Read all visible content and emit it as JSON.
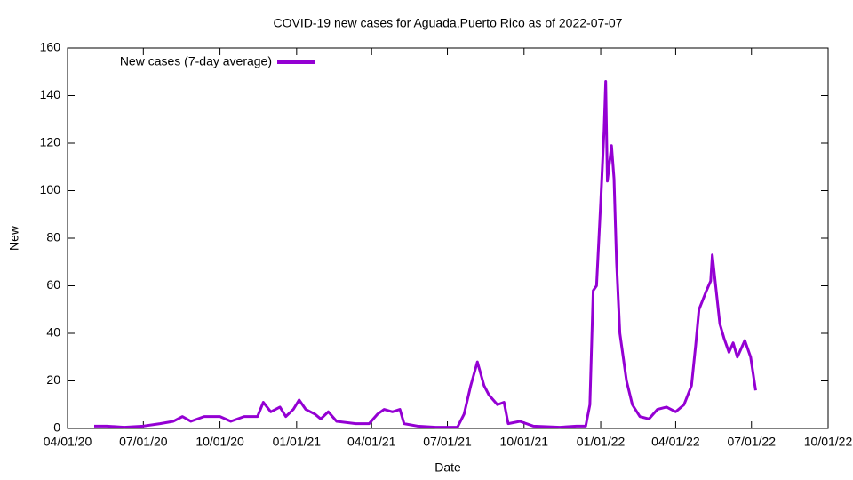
{
  "chart_data": {
    "type": "line",
    "title": "COVID-19 new cases for Aguada,Puerto Rico as of 2022-07-07",
    "x_label": "Date",
    "y_label": "New",
    "legend": "top-left",
    "xlim": [
      "2020-04-01",
      "2022-10-01"
    ],
    "xticks": [
      {
        "value": "2020-04-01",
        "label": "04/01/20"
      },
      {
        "value": "2020-07-01",
        "label": "07/01/20"
      },
      {
        "value": "2020-10-01",
        "label": "10/01/20"
      },
      {
        "value": "2021-01-01",
        "label": "01/01/21"
      },
      {
        "value": "2021-04-01",
        "label": "04/01/21"
      },
      {
        "value": "2021-07-01",
        "label": "07/01/21"
      },
      {
        "value": "2021-10-01",
        "label": "10/01/21"
      },
      {
        "value": "2022-01-01",
        "label": "01/01/22"
      },
      {
        "value": "2022-04-01",
        "label": "04/01/22"
      },
      {
        "value": "2022-07-01",
        "label": "07/01/22"
      },
      {
        "value": "2022-10-01",
        "label": "10/01/22"
      }
    ],
    "ylim": [
      0,
      160
    ],
    "yticks": [
      0,
      20,
      40,
      60,
      80,
      100,
      120,
      140,
      160
    ],
    "x": [
      "2020-05-03",
      "2020-05-18",
      "2020-06-08",
      "2020-07-01",
      "2020-07-21",
      "2020-08-06",
      "2020-08-17",
      "2020-08-27",
      "2020-09-12",
      "2020-10-01",
      "2020-10-14",
      "2020-10-30",
      "2020-11-15",
      "2020-11-22",
      "2020-12-01",
      "2020-12-12",
      "2020-12-19",
      "2020-12-28",
      "2021-01-04",
      "2021-01-12",
      "2021-01-23",
      "2021-01-30",
      "2021-02-08",
      "2021-02-18",
      "2021-03-13",
      "2021-03-29",
      "2021-04-08",
      "2021-04-16",
      "2021-04-26",
      "2021-05-05",
      "2021-05-10",
      "2021-05-26",
      "2021-06-17",
      "2021-07-13",
      "2021-07-21",
      "2021-07-29",
      "2021-08-06",
      "2021-08-14",
      "2021-08-20",
      "2021-08-30",
      "2021-09-07",
      "2021-09-12",
      "2021-09-26",
      "2021-10-12",
      "2021-11-13",
      "2021-12-03",
      "2021-12-14",
      "2021-12-19",
      "2021-12-23",
      "2021-12-27",
      "2022-01-01",
      "2022-01-05",
      "2022-01-07",
      "2022-01-09",
      "2022-01-14",
      "2022-01-17",
      "2022-01-20",
      "2022-01-24",
      "2022-02-01",
      "2022-02-08",
      "2022-02-17",
      "2022-02-28",
      "2022-03-10",
      "2022-03-21",
      "2022-04-01",
      "2022-04-11",
      "2022-04-20",
      "2022-04-25",
      "2022-04-29",
      "2022-05-08",
      "2022-05-13",
      "2022-05-15",
      "2022-05-19",
      "2022-05-24",
      "2022-05-29",
      "2022-06-04",
      "2022-06-09",
      "2022-06-14",
      "2022-06-23",
      "2022-06-30",
      "2022-07-06"
    ],
    "series": [
      {
        "name": "New cases (7-day average)",
        "color": "#9400d3",
        "values": [
          1,
          1,
          0.5,
          1,
          2,
          3,
          5,
          3,
          5,
          5,
          3,
          5,
          5,
          11,
          7,
          9,
          5,
          8,
          12,
          8,
          6,
          4,
          7,
          3,
          2,
          2,
          6,
          8,
          7,
          8,
          2,
          1,
          0.5,
          0.5,
          6,
          18,
          28,
          18,
          14,
          10,
          11,
          2,
          3,
          1,
          0.5,
          1,
          1,
          10,
          58,
          60,
          95,
          125,
          146,
          104,
          119,
          105,
          70,
          40,
          20,
          10,
          5,
          4,
          8,
          9,
          7,
          10,
          18,
          35,
          50,
          58,
          62,
          73,
          60,
          44,
          38,
          32,
          36,
          30,
          37,
          30,
          16
        ]
      }
    ]
  }
}
